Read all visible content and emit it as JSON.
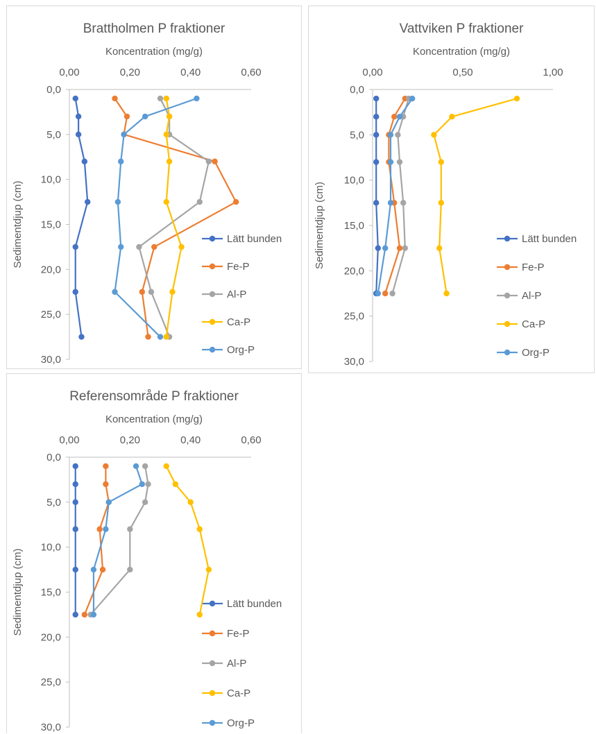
{
  "colors": {
    "Lätt bunden": "#4472C4",
    "Fe-P": "#ED7D31",
    "Al-P": "#A5A5A5",
    "Ca-P": "#FFC000",
    "Org-P": "#5B9BD5"
  },
  "chart_data": [
    {
      "type": "line",
      "title": "Brattholmen P fraktioner",
      "xlabel": "Koncentration (mg/g)",
      "ylabel": "Sedimentdjup (cm)",
      "xlim": [
        0,
        0.6
      ],
      "ylim": [
        0,
        30
      ],
      "y_reversed": true,
      "x_axis_position": "top",
      "xticks": [
        "0,00",
        "0,20",
        "0,40",
        "0,60"
      ],
      "yticks": [
        "0,0",
        "5,0",
        "10,0",
        "15,0",
        "20,0",
        "25,0",
        "30,0"
      ],
      "legend": "right",
      "series": [
        {
          "name": "Lätt bunden",
          "points": [
            [
              0.02,
              1
            ],
            [
              0.03,
              3
            ],
            [
              0.03,
              5
            ],
            [
              0.05,
              8
            ],
            [
              0.06,
              12.5
            ],
            [
              0.02,
              17.5
            ],
            [
              0.02,
              22.5
            ],
            [
              0.04,
              27.5
            ]
          ]
        },
        {
          "name": "Fe-P",
          "points": [
            [
              0.15,
              1
            ],
            [
              0.19,
              3
            ],
            [
              0.18,
              5
            ],
            [
              0.48,
              8
            ],
            [
              0.55,
              12.5
            ],
            [
              0.28,
              17.5
            ],
            [
              0.24,
              22.5
            ],
            [
              0.26,
              27.5
            ]
          ]
        },
        {
          "name": "Al-P",
          "points": [
            [
              0.3,
              1
            ],
            [
              0.33,
              3
            ],
            [
              0.33,
              5
            ],
            [
              0.46,
              8
            ],
            [
              0.43,
              12.5
            ],
            [
              0.23,
              17.5
            ],
            [
              0.27,
              22.5
            ],
            [
              0.33,
              27.5
            ]
          ]
        },
        {
          "name": "Ca-P",
          "points": [
            [
              0.32,
              1
            ],
            [
              0.33,
              3
            ],
            [
              0.32,
              5
            ],
            [
              0.33,
              8
            ],
            [
              0.32,
              12.5
            ],
            [
              0.37,
              17.5
            ],
            [
              0.34,
              22.5
            ],
            [
              0.32,
              27.5
            ]
          ]
        },
        {
          "name": "Org-P",
          "points": [
            [
              0.42,
              1
            ],
            [
              0.25,
              3
            ],
            [
              0.18,
              5
            ],
            [
              0.17,
              8
            ],
            [
              0.16,
              12.5
            ],
            [
              0.17,
              17.5
            ],
            [
              0.15,
              22.5
            ],
            [
              0.3,
              27.5
            ]
          ]
        }
      ]
    },
    {
      "type": "line",
      "title": "Vattviken P fraktioner",
      "xlabel": "Koncentration (mg/g)",
      "ylabel": "Sedimentdjup (cm)",
      "xlim": [
        0,
        1
      ],
      "ylim": [
        0,
        30
      ],
      "y_reversed": true,
      "x_axis_position": "top",
      "xticks": [
        "0,00",
        "0,50",
        "1,00"
      ],
      "yticks": [
        "0,0",
        "5,0",
        "10,0",
        "15,0",
        "20,0",
        "25,0",
        "30,0"
      ],
      "legend": "right",
      "series": [
        {
          "name": "Lätt bunden",
          "points": [
            [
              0.02,
              1
            ],
            [
              0.02,
              3
            ],
            [
              0.02,
              5
            ],
            [
              0.02,
              8
            ],
            [
              0.02,
              12.5
            ],
            [
              0.03,
              17.5
            ],
            [
              0.02,
              22.5
            ]
          ]
        },
        {
          "name": "Fe-P",
          "points": [
            [
              0.18,
              1
            ],
            [
              0.12,
              3
            ],
            [
              0.09,
              5
            ],
            [
              0.09,
              8
            ],
            [
              0.12,
              12.5
            ],
            [
              0.15,
              17.5
            ],
            [
              0.07,
              22.5
            ]
          ]
        },
        {
          "name": "Al-P",
          "points": [
            [
              0.2,
              1
            ],
            [
              0.17,
              3
            ],
            [
              0.14,
              5
            ],
            [
              0.15,
              8
            ],
            [
              0.17,
              12.5
            ],
            [
              0.18,
              17.5
            ],
            [
              0.11,
              22.5
            ]
          ]
        },
        {
          "name": "Ca-P",
          "points": [
            [
              0.8,
              1
            ],
            [
              0.44,
              3
            ],
            [
              0.34,
              5
            ],
            [
              0.38,
              8
            ],
            [
              0.38,
              12.5
            ],
            [
              0.37,
              17.5
            ],
            [
              0.41,
              22.5
            ]
          ]
        },
        {
          "name": "Org-P",
          "points": [
            [
              0.22,
              1
            ],
            [
              0.15,
              3
            ],
            [
              0.1,
              5
            ],
            [
              0.1,
              8
            ],
            [
              0.1,
              12.5
            ],
            [
              0.07,
              17.5
            ],
            [
              0.03,
              22.5
            ]
          ]
        }
      ]
    },
    {
      "type": "line",
      "title": "Referensområde P fraktioner",
      "xlabel": "Koncentration (mg/g)",
      "ylabel": "Sedimentdjup (cm)",
      "xlim": [
        0,
        0.6
      ],
      "ylim": [
        0,
        30
      ],
      "y_reversed": true,
      "x_axis_position": "top",
      "xticks": [
        "0,00",
        "0,20",
        "0,40",
        "0,60"
      ],
      "yticks": [
        "0,0",
        "5,0",
        "10,0",
        "15,0",
        "20,0",
        "25,0",
        "30,0"
      ],
      "legend": "right",
      "series": [
        {
          "name": "Lätt bunden",
          "points": [
            [
              0.02,
              1
            ],
            [
              0.02,
              3
            ],
            [
              0.02,
              5
            ],
            [
              0.02,
              8
            ],
            [
              0.02,
              12.5
            ],
            [
              0.02,
              17.5
            ]
          ]
        },
        {
          "name": "Fe-P",
          "points": [
            [
              0.12,
              1
            ],
            [
              0.12,
              3
            ],
            [
              0.13,
              5
            ],
            [
              0.1,
              8
            ],
            [
              0.11,
              12.5
            ],
            [
              0.05,
              17.5
            ]
          ]
        },
        {
          "name": "Al-P",
          "points": [
            [
              0.25,
              1
            ],
            [
              0.26,
              3
            ],
            [
              0.25,
              5
            ],
            [
              0.2,
              8
            ],
            [
              0.2,
              12.5
            ],
            [
              0.07,
              17.5
            ]
          ]
        },
        {
          "name": "Ca-P",
          "points": [
            [
              0.32,
              1
            ],
            [
              0.35,
              3
            ],
            [
              0.4,
              5
            ],
            [
              0.43,
              8
            ],
            [
              0.46,
              12.5
            ],
            [
              0.43,
              17.5
            ]
          ]
        },
        {
          "name": "Org-P",
          "points": [
            [
              0.22,
              1
            ],
            [
              0.24,
              3
            ],
            [
              0.13,
              5
            ],
            [
              0.12,
              8
            ],
            [
              0.08,
              12.5
            ],
            [
              0.08,
              17.5
            ]
          ]
        }
      ]
    }
  ]
}
